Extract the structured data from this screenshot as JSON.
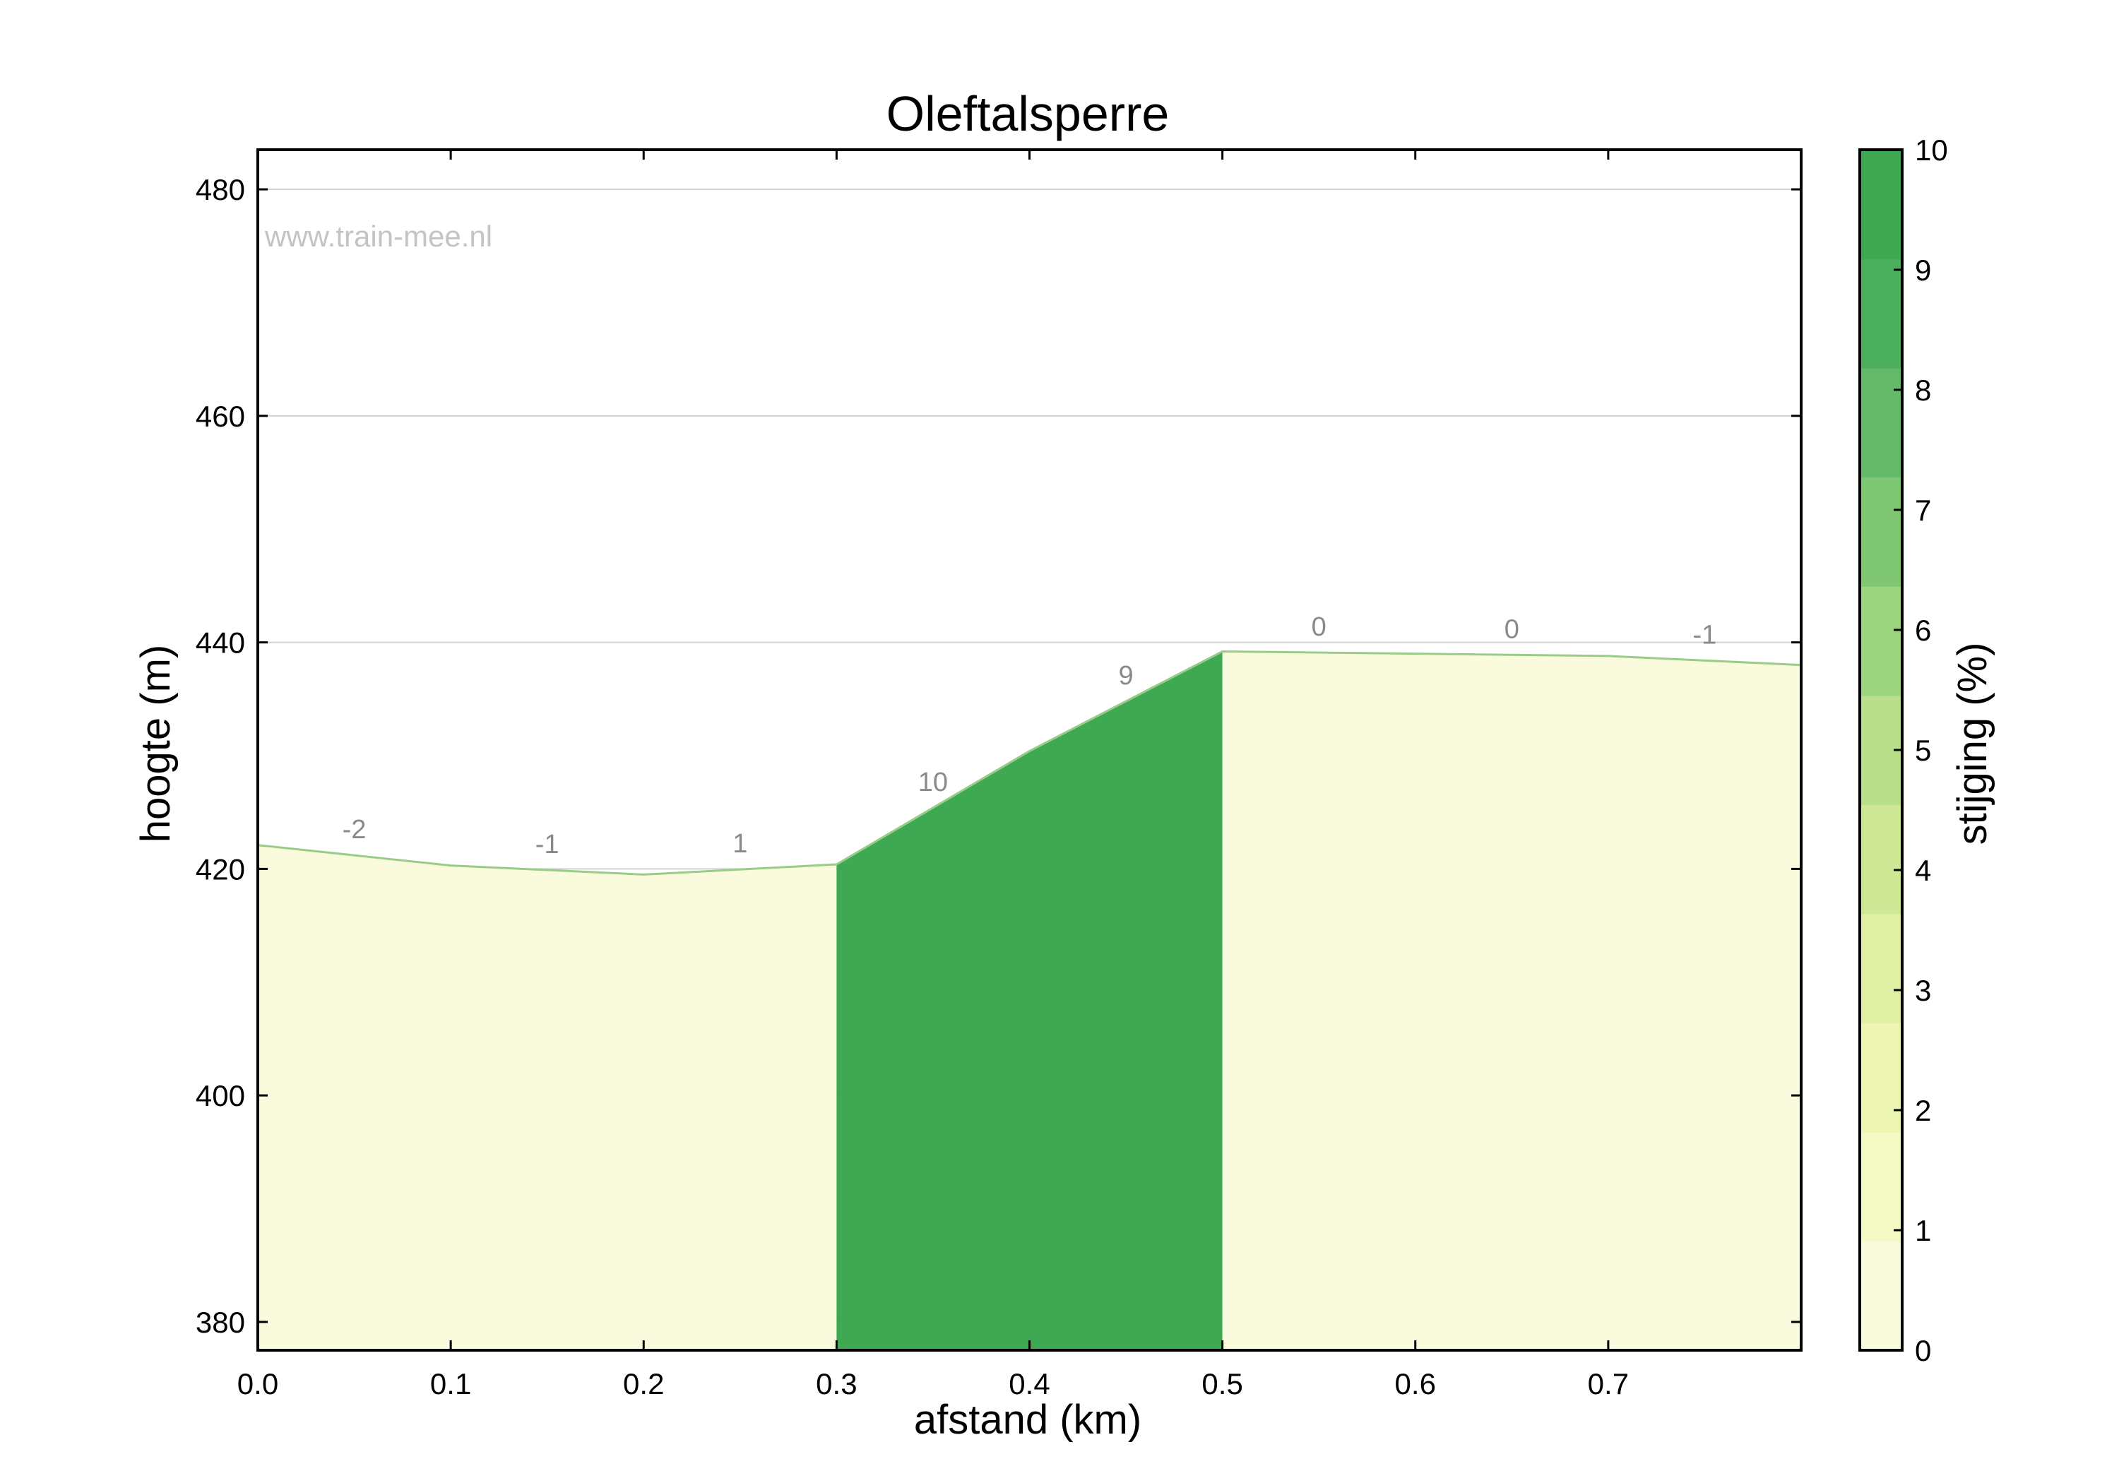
{
  "chart_data": {
    "type": "area",
    "title": "Oleftalsperre",
    "xlabel": "afstand (km)",
    "ylabel": "hoogte (m)",
    "watermark": "www.train-mee.nl",
    "xlim": [
      0,
      0.8
    ],
    "ylim": [
      377.5,
      483.5
    ],
    "x_ticks": [
      0.0,
      0.1,
      0.2,
      0.3,
      0.4,
      0.5,
      0.6,
      0.7
    ],
    "x_tick_labels": [
      "0.0",
      "0.1",
      "0.2",
      "0.3",
      "0.4",
      "0.5",
      "0.6",
      "0.7"
    ],
    "y_ticks": [
      380,
      400,
      420,
      440,
      460,
      480
    ],
    "y_tick_labels": [
      "380",
      "400",
      "420",
      "440",
      "460",
      "480"
    ],
    "grid": "horizontal",
    "profile": [
      {
        "x": 0.0,
        "y": 422.1
      },
      {
        "x": 0.1,
        "y": 420.3
      },
      {
        "x": 0.2,
        "y": 419.5
      },
      {
        "x": 0.3,
        "y": 420.4
      },
      {
        "x": 0.4,
        "y": 430.4
      },
      {
        "x": 0.5,
        "y": 439.2
      },
      {
        "x": 0.7,
        "y": 438.8
      },
      {
        "x": 0.8,
        "y": 438.0
      }
    ],
    "segments": [
      {
        "x0": 0.0,
        "x1": 0.1,
        "grade": -2,
        "label": "-2"
      },
      {
        "x0": 0.1,
        "x1": 0.2,
        "grade": -1,
        "label": "-1"
      },
      {
        "x0": 0.2,
        "x1": 0.3,
        "grade": 1,
        "label": "1"
      },
      {
        "x0": 0.3,
        "x1": 0.4,
        "grade": 10,
        "label": "10"
      },
      {
        "x0": 0.4,
        "x1": 0.5,
        "grade": 9,
        "label": "9"
      },
      {
        "x0": 0.5,
        "x1": 0.6,
        "grade": 0,
        "label": "0"
      },
      {
        "x0": 0.6,
        "x1": 0.7,
        "grade": 0,
        "label": "0"
      },
      {
        "x0": 0.7,
        "x1": 0.8,
        "grade": -1,
        "label": "-1"
      }
    ],
    "fill_bands": [
      {
        "x0": 0.0,
        "x1": 0.3,
        "color": "#fafbdc"
      },
      {
        "x0": 0.3,
        "x1": 0.5,
        "color": "#3ea853"
      },
      {
        "x0": 0.5,
        "x1": 0.8,
        "color": "#fafbdc"
      }
    ],
    "line_color": "#99cc88",
    "colorbar": {
      "label": "stijging (%)",
      "range": [
        0,
        10
      ],
      "ticks": [
        0,
        1,
        2,
        3,
        4,
        5,
        6,
        7,
        8,
        9,
        10
      ],
      "tick_labels": [
        "0",
        "1",
        "2",
        "3",
        "4",
        "5",
        "6",
        "7",
        "8",
        "9",
        "10"
      ],
      "colors": [
        "#fafbdc",
        "#f5f9c4",
        "#ecf5b1",
        "#e0f0a4",
        "#cfe896",
        "#b9df8a",
        "#9dd47e",
        "#7fc772",
        "#64ba69",
        "#4aae5d",
        "#3ea853"
      ]
    }
  }
}
